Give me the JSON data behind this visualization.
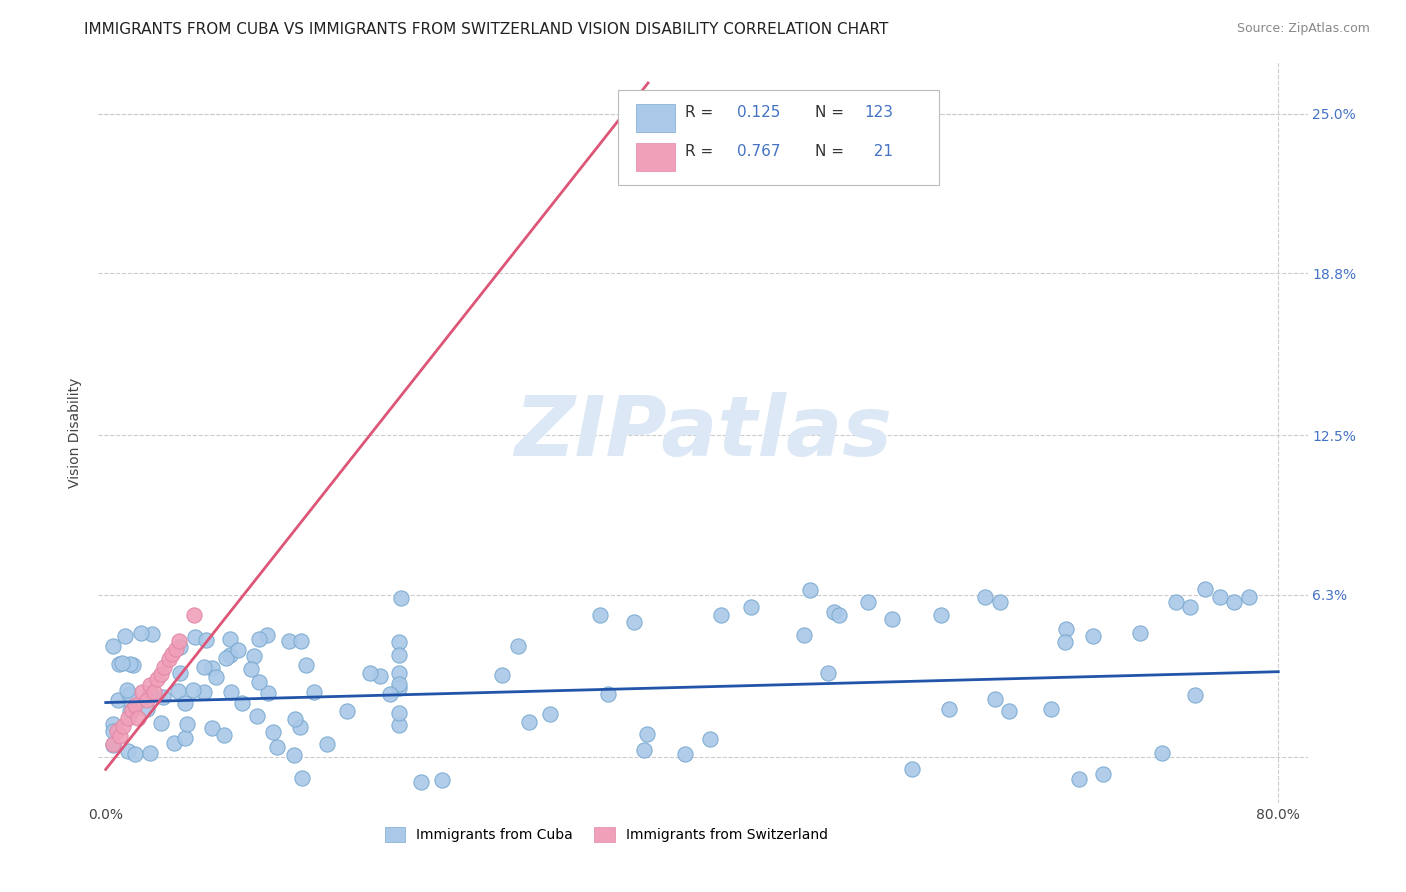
{
  "title": "IMMIGRANTS FROM CUBA VS IMMIGRANTS FROM SWITZERLAND VISION DISABILITY CORRELATION CHART",
  "source": "Source: ZipAtlas.com",
  "ylabel": "Vision Disability",
  "xlim": [
    -0.005,
    0.82
  ],
  "ylim": [
    -0.018,
    0.27
  ],
  "ytick_vals": [
    0.0,
    0.063,
    0.125,
    0.188,
    0.25
  ],
  "ytick_labels_right": [
    "",
    "6.3%",
    "12.5%",
    "18.8%",
    "25.0%"
  ],
  "xtick_vals": [
    0.0,
    0.1,
    0.2,
    0.3,
    0.4,
    0.5,
    0.6,
    0.7,
    0.8
  ],
  "xtick_labels": [
    "0.0%",
    "",
    "",
    "",
    "",
    "",
    "",
    "",
    "80.0%"
  ],
  "cuba_R": 0.125,
  "cuba_N": 123,
  "swiss_R": 0.767,
  "swiss_N": 21,
  "cuba_color": "#aac8e8",
  "swiss_color": "#f0a0b8",
  "cuba_line_color": "#2255aa",
  "swiss_line_color": "#dd5577",
  "watermark": "ZIPatlas",
  "watermark_color": "#dce8f5",
  "title_fontsize": 11,
  "source_fontsize": 9,
  "axis_label_fontsize": 10,
  "tick_fontsize": 10,
  "grid_color": "#cccccc",
  "border_color": "#cccccc",
  "cuba_trend_x": [
    0.0,
    0.8
  ],
  "cuba_trend_y": [
    0.021,
    0.033
  ],
  "swiss_trend_x": [
    0.0,
    0.37
  ],
  "swiss_trend_y": [
    -0.005,
    0.262
  ]
}
